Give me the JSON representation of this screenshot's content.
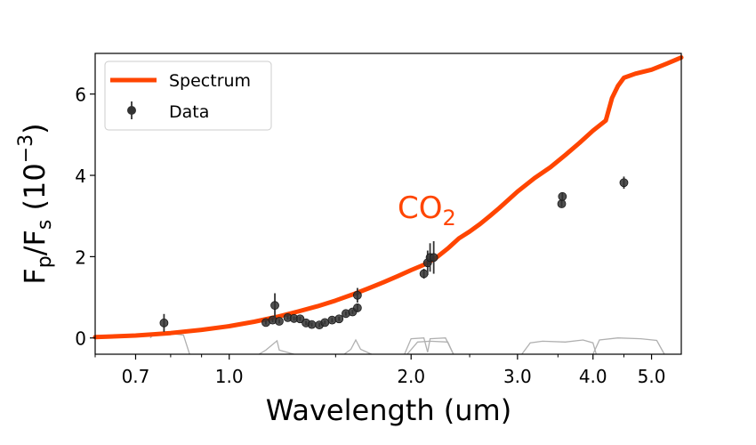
{
  "chart_data": {
    "type": "scatter",
    "x_scale": "log",
    "xlim": [
      0.6,
      5.6
    ],
    "ylim": [
      -0.4,
      7.0
    ],
    "xlabel": "Wavelength  (um)",
    "ylabel_main": "F",
    "ylabel_sub_p": "p",
    "ylabel_slash": "/F",
    "ylabel_sub_s": "s",
    "ylabel_paren_open": " (10",
    "ylabel_exp": "−3",
    "ylabel_paren_close": ")",
    "x_ticks": [
      {
        "value": 0.7,
        "label": "0.7"
      },
      {
        "value": 1.0,
        "label": "1.0"
      },
      {
        "value": 2.0,
        "label": "2.0"
      },
      {
        "value": 3.0,
        "label": "3.0"
      },
      {
        "value": 4.0,
        "label": "4.0"
      },
      {
        "value": 5.0,
        "label": "5.0"
      }
    ],
    "y_ticks": [
      {
        "value": 0,
        "label": "0"
      },
      {
        "value": 2,
        "label": "2"
      },
      {
        "value": 4,
        "label": "4"
      },
      {
        "value": 6,
        "label": "6"
      }
    ],
    "legend": {
      "placement": "top-left",
      "entries": [
        {
          "label": "Spectrum",
          "kind": "line"
        },
        {
          "label": "Data",
          "kind": "errorbar"
        }
      ]
    },
    "annotation": {
      "text": "CO",
      "subscript": "2",
      "x": 2.1,
      "y": 3.0,
      "color": "#ff4500"
    },
    "colors": {
      "spectrum": "#ff4500",
      "data": "#333333",
      "filters": "#b0b0b0"
    },
    "spectrum": {
      "name": "Spectrum",
      "points": [
        [
          0.6,
          0.02
        ],
        [
          0.65,
          0.04
        ],
        [
          0.7,
          0.06
        ],
        [
          0.75,
          0.09
        ],
        [
          0.8,
          0.12
        ],
        [
          0.9,
          0.2
        ],
        [
          1.0,
          0.29
        ],
        [
          1.1,
          0.4
        ],
        [
          1.2,
          0.52
        ],
        [
          1.3,
          0.65
        ],
        [
          1.4,
          0.78
        ],
        [
          1.5,
          0.92
        ],
        [
          1.6,
          1.07
        ],
        [
          1.7,
          1.22
        ],
        [
          1.8,
          1.37
        ],
        [
          1.9,
          1.52
        ],
        [
          2.0,
          1.67
        ],
        [
          2.1,
          1.8
        ],
        [
          2.2,
          1.97
        ],
        [
          2.3,
          2.2
        ],
        [
          2.4,
          2.45
        ],
        [
          2.5,
          2.62
        ],
        [
          2.6,
          2.8
        ],
        [
          2.7,
          3.0
        ],
        [
          2.8,
          3.2
        ],
        [
          3.0,
          3.6
        ],
        [
          3.2,
          3.93
        ],
        [
          3.4,
          4.2
        ],
        [
          3.6,
          4.5
        ],
        [
          3.8,
          4.8
        ],
        [
          4.0,
          5.1
        ],
        [
          4.2,
          5.35
        ],
        [
          4.3,
          5.9
        ],
        [
          4.4,
          6.2
        ],
        [
          4.5,
          6.4
        ],
        [
          4.7,
          6.5
        ],
        [
          5.0,
          6.6
        ],
        [
          5.3,
          6.75
        ],
        [
          5.6,
          6.9
        ]
      ]
    },
    "data": {
      "name": "Data",
      "points": [
        {
          "x": 0.78,
          "y": 0.37,
          "err": 0.22
        },
        {
          "x": 1.15,
          "y": 0.38,
          "err": 0.05
        },
        {
          "x": 1.18,
          "y": 0.44,
          "err": 0.05
        },
        {
          "x": 1.19,
          "y": 0.8,
          "err": 0.3
        },
        {
          "x": 1.21,
          "y": 0.41,
          "err": 0.05
        },
        {
          "x": 1.25,
          "y": 0.5,
          "err": 0.05
        },
        {
          "x": 1.28,
          "y": 0.48,
          "err": 0.05
        },
        {
          "x": 1.31,
          "y": 0.47,
          "err": 0.05
        },
        {
          "x": 1.34,
          "y": 0.37,
          "err": 0.05
        },
        {
          "x": 1.37,
          "y": 0.33,
          "err": 0.05
        },
        {
          "x": 1.41,
          "y": 0.32,
          "err": 0.05
        },
        {
          "x": 1.44,
          "y": 0.38,
          "err": 0.05
        },
        {
          "x": 1.48,
          "y": 0.44,
          "err": 0.05
        },
        {
          "x": 1.52,
          "y": 0.47,
          "err": 0.05
        },
        {
          "x": 1.56,
          "y": 0.6,
          "err": 0.05
        },
        {
          "x": 1.6,
          "y": 0.64,
          "err": 0.05
        },
        {
          "x": 1.63,
          "y": 0.74,
          "err": 0.1
        },
        {
          "x": 1.63,
          "y": 1.05,
          "err": 0.18
        },
        {
          "x": 2.1,
          "y": 1.58,
          "err": 0.12
        },
        {
          "x": 2.13,
          "y": 1.85,
          "err": 0.3
        },
        {
          "x": 2.15,
          "y": 1.98,
          "err": 0.35
        },
        {
          "x": 2.18,
          "y": 1.98,
          "err": 0.4
        },
        {
          "x": 3.55,
          "y": 3.3,
          "err": 0.08
        },
        {
          "x": 3.56,
          "y": 3.48,
          "err": 0.1
        },
        {
          "x": 4.5,
          "y": 3.82,
          "err": 0.15
        }
      ]
    },
    "filter_curves": [
      [
        [
          0.74,
          0.0
        ],
        [
          0.75,
          0.09
        ],
        [
          0.8,
          0.11
        ],
        [
          0.84,
          0.07
        ],
        [
          0.86,
          -0.4
        ]
      ],
      [
        [
          1.12,
          -0.4
        ],
        [
          1.15,
          -0.3
        ],
        [
          1.2,
          -0.07
        ],
        [
          1.21,
          -0.3
        ],
        [
          1.28,
          -0.4
        ]
      ],
      [
        [
          1.55,
          -0.4
        ],
        [
          1.59,
          -0.28
        ],
        [
          1.62,
          -0.05
        ],
        [
          1.65,
          -0.28
        ],
        [
          1.72,
          -0.4
        ]
      ],
      [
        [
          1.95,
          -0.4
        ],
        [
          2.0,
          -0.02
        ],
        [
          2.1,
          0.0
        ],
        [
          2.13,
          -0.35
        ],
        [
          2.15,
          -0.02
        ],
        [
          2.28,
          0.0
        ],
        [
          2.35,
          -0.4
        ]
      ],
      [
        [
          1.97,
          -0.4
        ],
        [
          2.05,
          -0.1
        ],
        [
          2.15,
          -0.08
        ],
        [
          2.3,
          -0.1
        ],
        [
          2.35,
          -0.4
        ]
      ],
      [
        [
          3.05,
          -0.4
        ],
        [
          3.15,
          -0.12
        ],
        [
          3.3,
          -0.08
        ],
        [
          3.6,
          -0.1
        ],
        [
          3.85,
          -0.05
        ],
        [
          4.0,
          -0.12
        ],
        [
          4.05,
          -0.4
        ]
      ],
      [
        [
          4.0,
          -0.4
        ],
        [
          4.1,
          -0.05
        ],
        [
          4.4,
          0.0
        ],
        [
          4.8,
          -0.02
        ],
        [
          5.1,
          -0.06
        ],
        [
          5.25,
          -0.4
        ]
      ]
    ]
  }
}
